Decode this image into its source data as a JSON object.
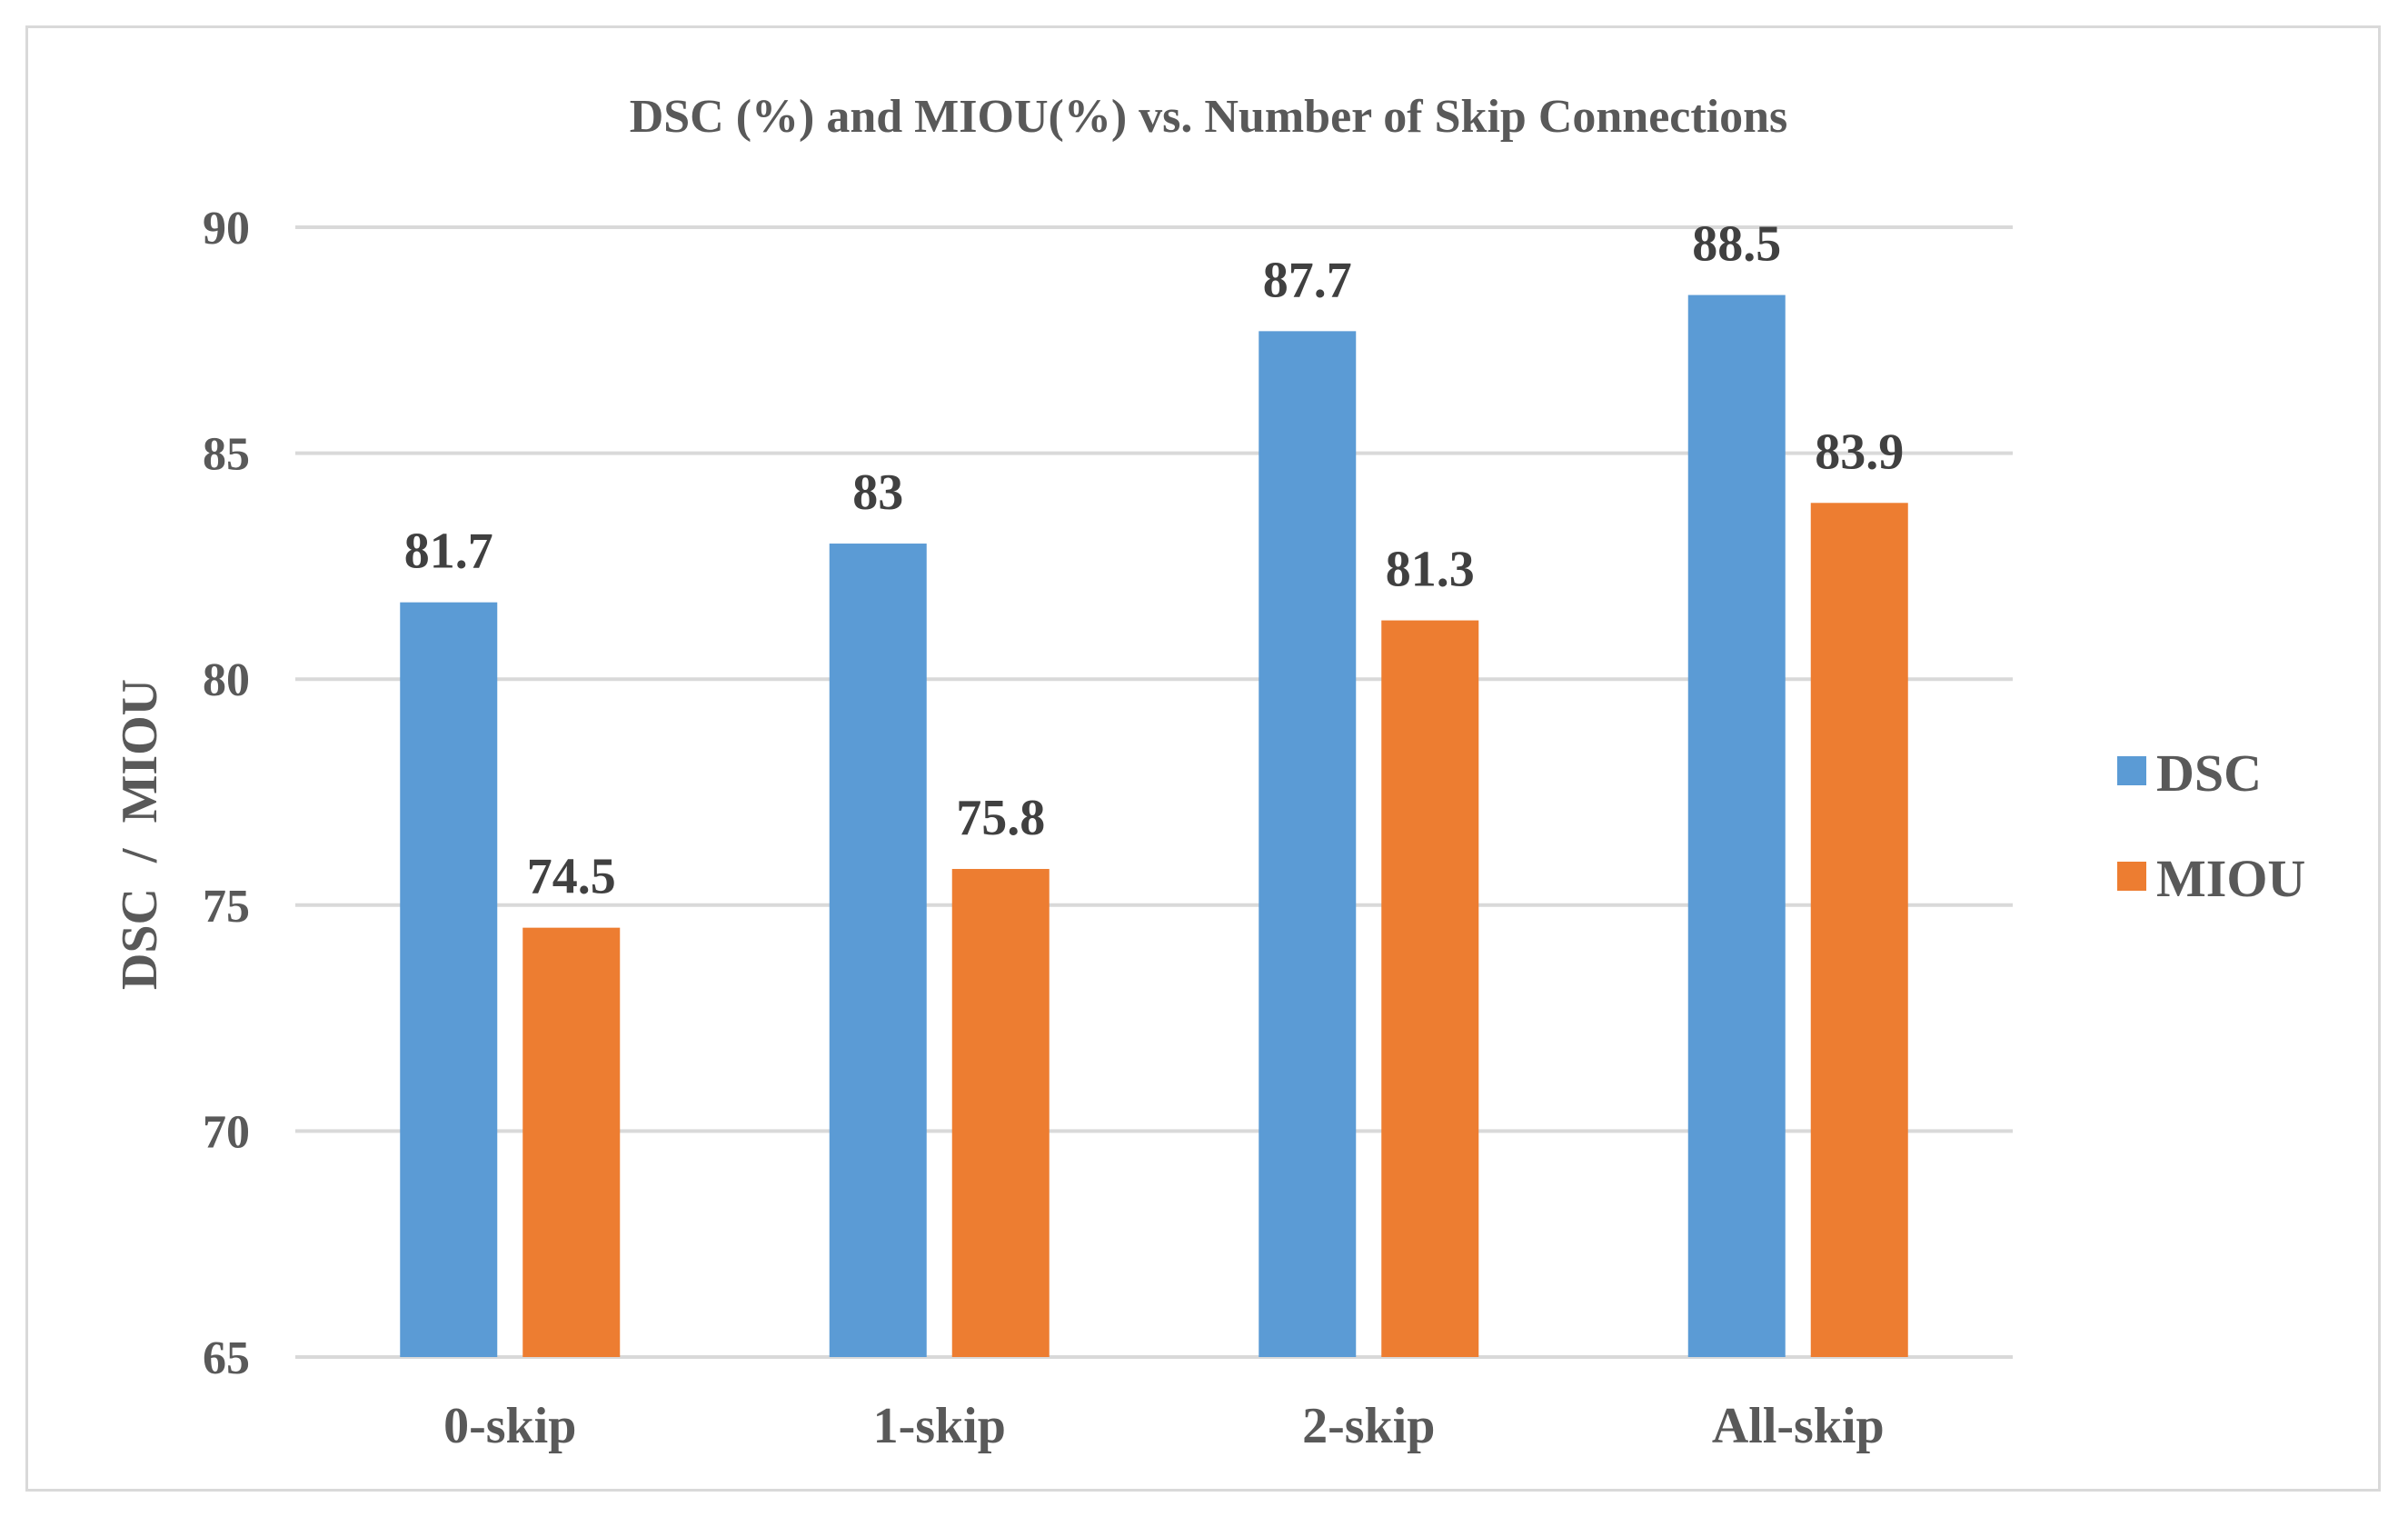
{
  "chart_data": {
    "type": "bar",
    "title": "DSC (%) and MIOU(%) vs. Number of Skip Connections",
    "xlabel": "",
    "ylabel": "DSC  /  MIOU",
    "categories": [
      "0-skip",
      "1-skip",
      "2-skip",
      "All-skip"
    ],
    "series": [
      {
        "name": "DSC",
        "color": "#5b9bd5",
        "values": [
          81.7,
          83,
          87.7,
          88.5
        ],
        "labels": [
          "81.7",
          "83",
          "87.7",
          "88.5"
        ]
      },
      {
        "name": "MIOU",
        "color": "#ed7d31",
        "values": [
          74.5,
          75.8,
          81.3,
          83.9
        ],
        "labels": [
          "74.5",
          "75.8",
          "81.3",
          "83.9"
        ]
      }
    ],
    "ylim": [
      65,
      90
    ],
    "yticks": [
      "65",
      "70",
      "75",
      "80",
      "85",
      "90"
    ],
    "grid": true,
    "legend": "right"
  }
}
